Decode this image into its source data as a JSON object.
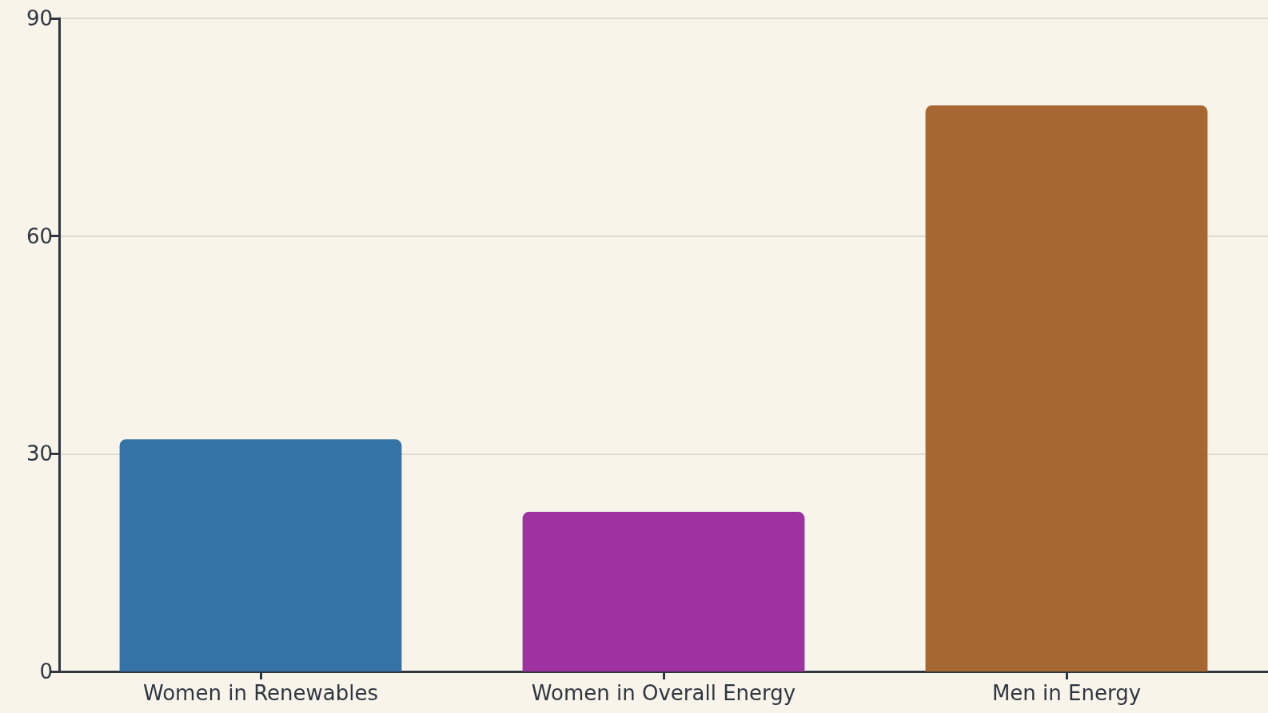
{
  "chart_data": {
    "type": "bar",
    "categories": [
      "Women in Renewables",
      "Women in Overall Energy",
      "Men in Energy"
    ],
    "values": [
      32,
      22,
      78
    ],
    "colors": [
      "#3572a5",
      "#9e32a0",
      "#a66733"
    ],
    "ylim": [
      0,
      90
    ],
    "yticks": [
      0,
      30,
      60,
      90
    ],
    "grid": "y"
  }
}
